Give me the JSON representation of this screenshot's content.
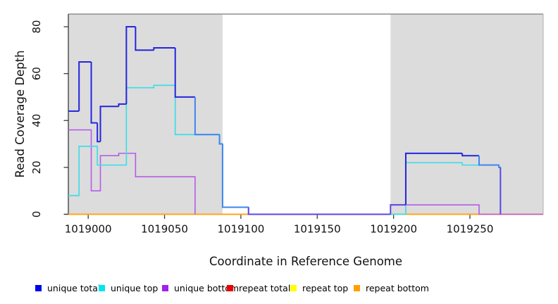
{
  "chart_data": {
    "type": "line",
    "title": "",
    "xlabel": "Coordinate in Reference Genome",
    "ylabel": "Read Coverage Depth",
    "xlim": [
      1018987,
      1019298
    ],
    "ylim": [
      0,
      85.4
    ],
    "x_ticks": [
      1019000,
      1019050,
      1019100,
      1019150,
      1019200,
      1019250
    ],
    "y_ticks": [
      0,
      20,
      40,
      60,
      80
    ],
    "grid": false,
    "legend_position": "bottom",
    "plot_background": "#ffffff",
    "shaded_regions": [
      {
        "name": "left-shaded-region",
        "x0": 1018987,
        "x1": 1019088,
        "color": "#dcdcdc"
      },
      {
        "name": "right-shaded-region",
        "x0": 1019198,
        "x1": 1019298,
        "color": "#dcdcdc"
      }
    ],
    "series": [
      {
        "name": "repeat top",
        "color": "#ffff00",
        "width": 1.4,
        "points": [
          [
            1018987,
            0
          ]
        ],
        "end": 1019298
      },
      {
        "name": "repeat total",
        "color": "#ee2c2c",
        "width": 1.4,
        "points": [
          [
            1018987,
            0
          ]
        ],
        "end": 1019298
      },
      {
        "name": "repeat bottom",
        "color": "#ffa41b",
        "width": 1.9,
        "points": [
          [
            1018987,
            0
          ]
        ],
        "end": 1019298
      },
      {
        "name": "unique bottom",
        "color": "#b55ce8",
        "width": 1.6,
        "points": [
          [
            1018987,
            36
          ],
          [
            1019002,
            10
          ],
          [
            1019008,
            25
          ],
          [
            1019020,
            26
          ],
          [
            1019031,
            16
          ],
          [
            1019070,
            0
          ],
          [
            1019072,
            null
          ],
          [
            1019198,
            4
          ],
          [
            1019256,
            0
          ]
        ],
        "end": 1019298
      },
      {
        "name": "unique top",
        "color": "#40dde8",
        "width": 1.7,
        "points": [
          [
            1018987,
            8
          ],
          [
            1018994,
            29
          ],
          [
            1019006,
            21
          ],
          [
            1019025,
            54
          ],
          [
            1019043,
            55
          ],
          [
            1019057,
            34
          ],
          [
            1019086,
            30
          ],
          [
            1019088,
            3
          ],
          [
            1019105,
            0
          ],
          [
            1019107,
            null
          ],
          [
            1019198,
            0
          ],
          [
            1019208,
            22
          ],
          [
            1019245,
            21
          ],
          [
            1019269,
            20
          ],
          [
            1019270,
            0
          ]
        ],
        "end": 1019270
      },
      {
        "name": "unique total",
        "color": "#2525dc",
        "width": 2,
        "overlap_colors": {
          "with_top": "#3d85f2",
          "with_bottom": "#5a46e6"
        },
        "points": [
          [
            1018987,
            44
          ],
          [
            1018994,
            65
          ],
          [
            1019002,
            39
          ],
          [
            1019006,
            31
          ],
          [
            1019008,
            46
          ],
          [
            1019020,
            47
          ],
          [
            1019025,
            80
          ],
          [
            1019031,
            70
          ],
          [
            1019043,
            71
          ],
          [
            1019057,
            50
          ],
          [
            1019070,
            34
          ],
          [
            1019086,
            30
          ],
          [
            1019088,
            3
          ],
          [
            1019105,
            0
          ],
          [
            1019198,
            4
          ],
          [
            1019208,
            26
          ],
          [
            1019245,
            25
          ],
          [
            1019256,
            21
          ],
          [
            1019269,
            20
          ],
          [
            1019270,
            0
          ]
        ],
        "end": 1019270
      }
    ],
    "legend": [
      {
        "label": "unique total",
        "color": "#0000ee"
      },
      {
        "label": "unique top",
        "color": "#00e5ee"
      },
      {
        "label": "unique bottom",
        "color": "#a020f0"
      },
      {
        "label": "repeat total",
        "color": "#ee0000"
      },
      {
        "label": "repeat top",
        "color": "#ffff00"
      },
      {
        "label": "repeat bottom",
        "color": "#ff9f00"
      }
    ],
    "axis_colors": {
      "axis": "#3a3a3a",
      "box_top": "#8f8f8f",
      "box_right": "#b0b0b0"
    }
  }
}
